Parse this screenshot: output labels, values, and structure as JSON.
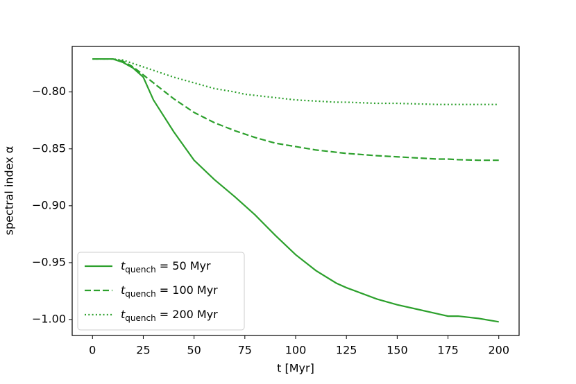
{
  "chart_data": {
    "type": "line",
    "x_label": "t [Myr]",
    "y_label": "spectral index α",
    "x": [
      0,
      10,
      15,
      20,
      25,
      30,
      40,
      50,
      60,
      70,
      75,
      80,
      90,
      100,
      110,
      120,
      125,
      140,
      150,
      160,
      170,
      175,
      180,
      190,
      200
    ],
    "series": [
      {
        "name": "tquench = 50 Myr",
        "color": "#2ca02c",
        "linestyle": "solid",
        "values": [
          -0.771,
          -0.771,
          -0.774,
          -0.779,
          -0.787,
          -0.807,
          -0.835,
          -0.86,
          -0.877,
          -0.892,
          -0.9,
          -0.908,
          -0.926,
          -0.943,
          -0.957,
          -0.968,
          -0.972,
          -0.982,
          -0.987,
          -0.991,
          -0.995,
          -0.997,
          -0.997,
          -0.999,
          -1.002
        ]
      },
      {
        "name": "tquench = 100 Myr",
        "color": "#2ca02c",
        "linestyle": "dashed",
        "values": [
          -0.771,
          -0.771,
          -0.773,
          -0.778,
          -0.785,
          -0.792,
          -0.806,
          -0.818,
          -0.827,
          -0.834,
          -0.837,
          -0.84,
          -0.845,
          -0.848,
          -0.851,
          -0.853,
          -0.854,
          -0.856,
          -0.857,
          -0.858,
          -0.859,
          -0.859,
          -0.8595,
          -0.86,
          -0.86
        ]
      },
      {
        "name": "tquench = 200 Myr",
        "color": "#2ca02c",
        "linestyle": "dotted",
        "values": [
          -0.771,
          -0.771,
          -0.772,
          -0.775,
          -0.778,
          -0.781,
          -0.787,
          -0.792,
          -0.797,
          -0.8,
          -0.802,
          -0.803,
          -0.805,
          -0.807,
          -0.808,
          -0.809,
          -0.809,
          -0.81,
          -0.81,
          -0.8105,
          -0.811,
          -0.811,
          -0.811,
          -0.811,
          -0.811
        ]
      }
    ],
    "xlim": [
      -10,
      210
    ],
    "ylim": [
      -1.014,
      -0.76
    ],
    "xticks": [
      0,
      25,
      50,
      75,
      100,
      125,
      150,
      175,
      200
    ],
    "yticks": [
      {
        "value": -1.0,
        "label": "−1.00"
      },
      {
        "value": -0.95,
        "label": "−0.95"
      },
      {
        "value": -0.9,
        "label": "−0.90"
      },
      {
        "value": -0.85,
        "label": "−0.85"
      },
      {
        "value": -0.8,
        "label": "−0.80"
      }
    ],
    "legend": "lower left",
    "grid": false
  }
}
